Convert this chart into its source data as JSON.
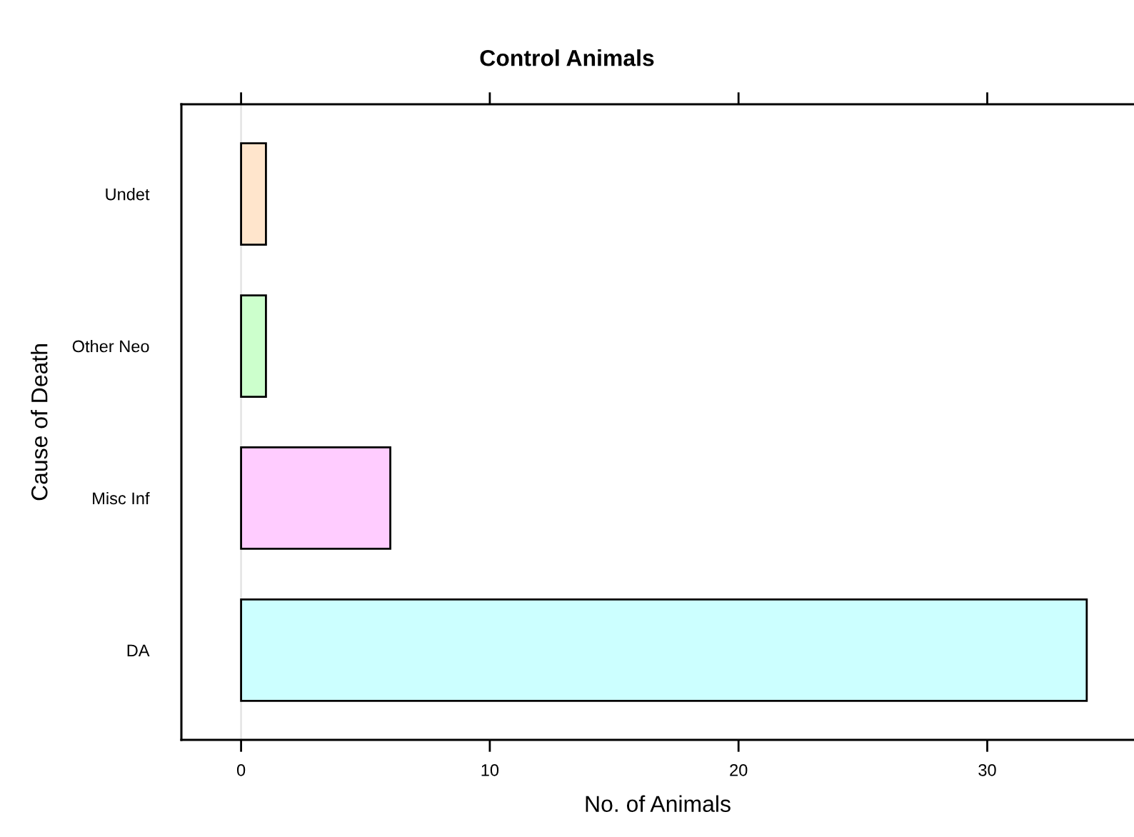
{
  "chart_data": {
    "type": "bar",
    "title": "Control Animals",
    "xlabel": "No. of Animals",
    "ylabel": "Cause of Death",
    "orientation": "horizontal",
    "categories": [
      "Undet",
      "Other Neo",
      "Misc Inf",
      "DA"
    ],
    "values": [
      1,
      1,
      6,
      34
    ],
    "colors": [
      "#ffe5cc",
      "#ccffcc",
      "#ffccff",
      "#ccffff"
    ],
    "xlim": [
      -2.4,
      35.9
    ],
    "xticks": [
      0,
      10,
      20,
      30
    ],
    "ref_lines": [
      {
        "axis": "x",
        "value": 0,
        "color": "#e6e6e6"
      }
    ]
  }
}
